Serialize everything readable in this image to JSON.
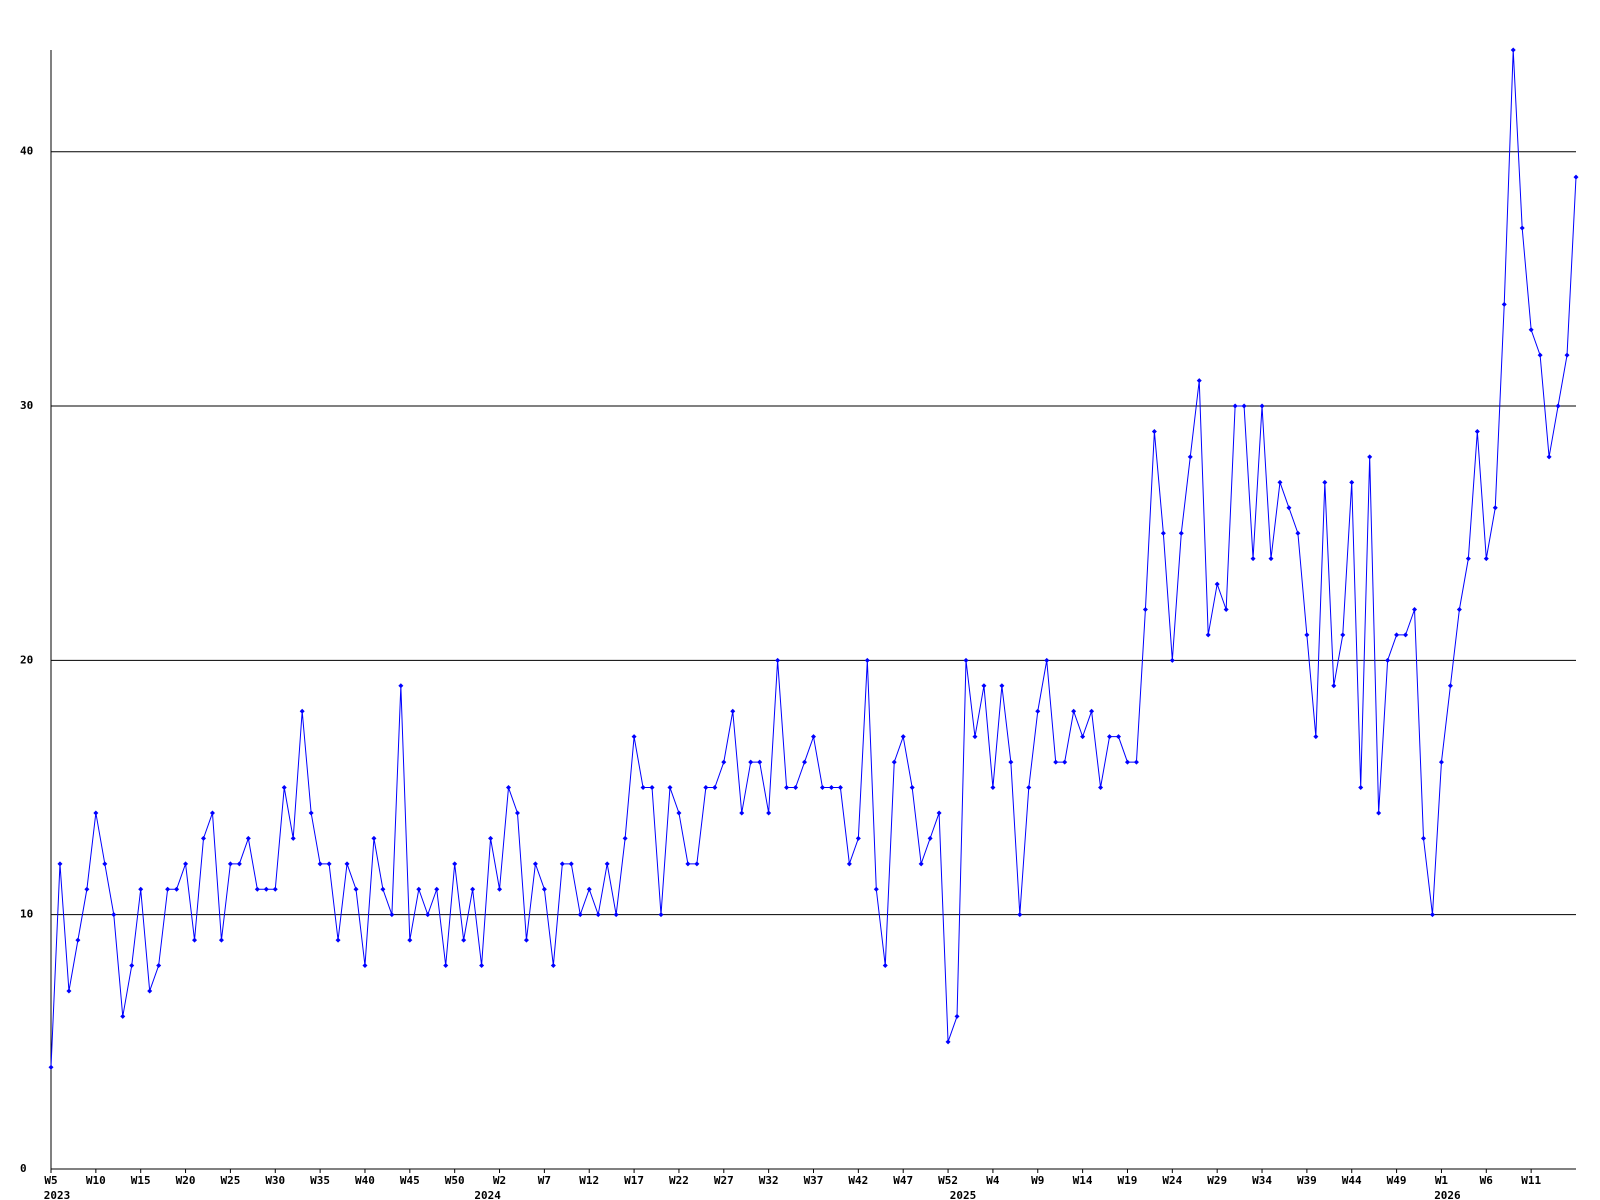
{
  "chart_data": {
    "type": "line",
    "categories": [
      "W5",
      null,
      null,
      null,
      null,
      "W10",
      null,
      null,
      null,
      null,
      "W15",
      null,
      null,
      null,
      null,
      "W20",
      null,
      null,
      null,
      null,
      "W25",
      null,
      null,
      null,
      null,
      "W30",
      null,
      null,
      null,
      null,
      "W35",
      null,
      null,
      null,
      null,
      "W40",
      null,
      null,
      null,
      null,
      "W45",
      null,
      null,
      null,
      null,
      "W50",
      null,
      null,
      null,
      null,
      "W2",
      null,
      null,
      null,
      null,
      "W7",
      null,
      null,
      null,
      null,
      "W12",
      null,
      null,
      null,
      null,
      "W17",
      null,
      null,
      null,
      null,
      "W22",
      null,
      null,
      null,
      null,
      "W27",
      null,
      null,
      null,
      null,
      "W32",
      null,
      null,
      null,
      null,
      "W37",
      null,
      null,
      null,
      null,
      "W42",
      null,
      null,
      null,
      null,
      "W47",
      null,
      null,
      null,
      null,
      "W52",
      null,
      null,
      null,
      null,
      "W4",
      null,
      null,
      null,
      null,
      "W9",
      null,
      null,
      null,
      null,
      "W14",
      null,
      null,
      null,
      null,
      "W19",
      null,
      null,
      null,
      null,
      "W24",
      null,
      null,
      null,
      null,
      "W29",
      null,
      null,
      null,
      null,
      "W34",
      null,
      null,
      null,
      null,
      "W39",
      null,
      null,
      null,
      null,
      "W44",
      null,
      null,
      null,
      null,
      "W49",
      null,
      null,
      null,
      null,
      "W1",
      null,
      null,
      null,
      null,
      "W6",
      null,
      null,
      null,
      null,
      "W11",
      null,
      null,
      null,
      null,
      null
    ],
    "year_groups": [
      {
        "label": "2023",
        "start": 0
      },
      {
        "label": "2024",
        "start": 48
      },
      {
        "label": "2025",
        "start": 101
      },
      {
        "label": "2026",
        "start": 155
      }
    ],
    "series": [
      {
        "color": "#0000ff",
        "values": [
          4,
          12,
          7,
          9,
          11,
          14,
          12,
          10,
          6,
          8,
          11,
          7,
          8,
          11,
          11,
          12,
          9,
          13,
          14,
          9,
          12,
          12,
          13,
          11,
          11,
          11,
          15,
          13,
          18,
          14,
          12,
          12,
          9,
          12,
          11,
          8,
          13,
          11,
          10,
          19,
          9,
          11,
          10,
          11,
          8,
          12,
          9,
          11,
          8,
          13,
          11,
          15,
          14,
          9,
          12,
          11,
          8,
          12,
          12,
          10,
          11,
          10,
          12,
          10,
          13,
          17,
          15,
          15,
          10,
          15,
          14,
          12,
          12,
          15,
          15,
          16,
          18,
          14,
          16,
          16,
          14,
          20,
          15,
          15,
          16,
          17,
          15,
          15,
          15,
          12,
          13,
          20,
          11,
          8,
          16,
          17,
          15,
          12,
          13,
          14,
          5,
          6,
          20,
          17,
          19,
          15,
          19,
          16,
          10,
          15,
          18,
          20,
          16,
          16,
          18,
          17,
          18,
          15,
          17,
          17,
          16,
          16,
          22,
          29,
          25,
          20,
          25,
          28,
          31,
          21,
          23,
          22,
          30,
          30,
          24,
          30,
          24,
          27,
          26,
          25,
          21,
          17,
          27,
          19,
          21,
          27,
          15,
          28,
          14,
          20,
          21,
          21,
          22,
          13,
          10,
          16,
          19,
          22,
          24,
          29,
          24,
          26,
          34,
          44,
          37,
          33,
          32,
          28,
          30,
          32,
          39
        ]
      }
    ],
    "ylim": [
      0,
      44
    ],
    "yticks": [
      0,
      10,
      20,
      30,
      40
    ],
    "grid": true
  }
}
